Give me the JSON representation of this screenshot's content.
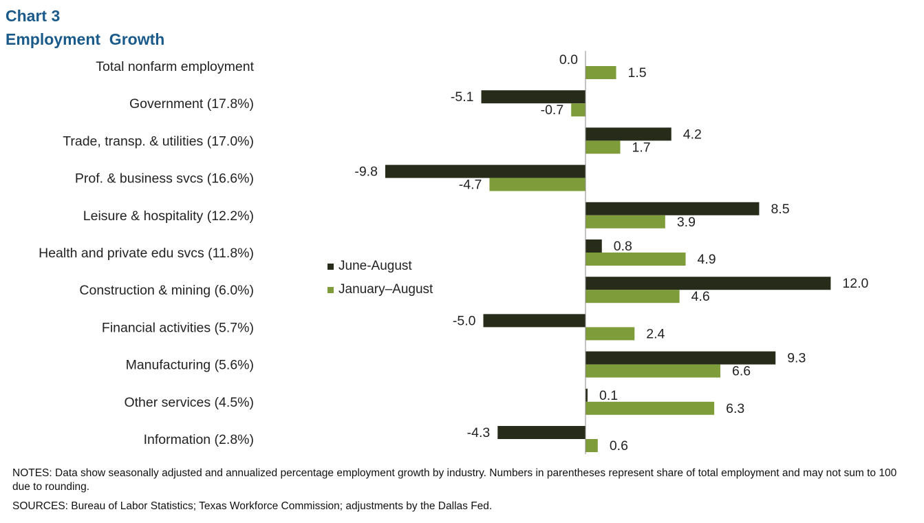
{
  "title_line1": "Chart 3",
  "title_line2": "Employment  Growth",
  "notes": "NOTES: Data show seasonally adjusted and annualized percentage employment growth by industry. Numbers in parentheses represent share of total employment and may not sum to 100 due to rounding.",
  "sources": "SOURCES: Bureau of Labor Statistics; Texas Workforce Commission; adjustments by the Dallas Fed.",
  "colors": {
    "june_august": "#262b1a",
    "january_august": "#7f9c3a",
    "title": "#1a5a8a"
  },
  "chart_data": {
    "type": "bar",
    "orientation": "horizontal",
    "categories": [
      "Total nonfarm employment",
      "Government (17.8%)",
      "Trade, transp. & utilities (17.0%)",
      "Prof. & business svcs (16.6%)",
      "Leisure & hospitality (12.2%)",
      "Health and private edu svcs (11.8%)",
      "Construction & mining (6.0%)",
      "Financial activities (5.7%)",
      "Manufacturing (5.6%)",
      "Other services (4.5%)",
      "Information (2.8%)"
    ],
    "series": [
      {
        "name": "June-August",
        "values": [
          0.0,
          -5.1,
          4.2,
          -9.8,
          8.5,
          0.8,
          12.0,
          -5.0,
          9.3,
          0.1,
          -4.3
        ],
        "labels": [
          "0.0",
          "-5.1",
          "4.2",
          "-9.8",
          "8.5",
          "0.8",
          "12.0",
          "-5.0",
          "9.3",
          "0.1",
          "-4.3"
        ]
      },
      {
        "name": "January–August",
        "values": [
          1.5,
          -0.7,
          1.7,
          -4.7,
          3.9,
          4.9,
          4.6,
          2.4,
          6.6,
          6.3,
          0.6
        ],
        "labels": [
          "1.5",
          "-0.7",
          "1.7",
          "-4.7",
          "3.9",
          "4.9",
          "4.6",
          "2.4",
          "6.6",
          "6.3",
          "0.6"
        ]
      }
    ],
    "xlim": [
      -10,
      12
    ],
    "grid": false,
    "legend_position": "center-left"
  }
}
